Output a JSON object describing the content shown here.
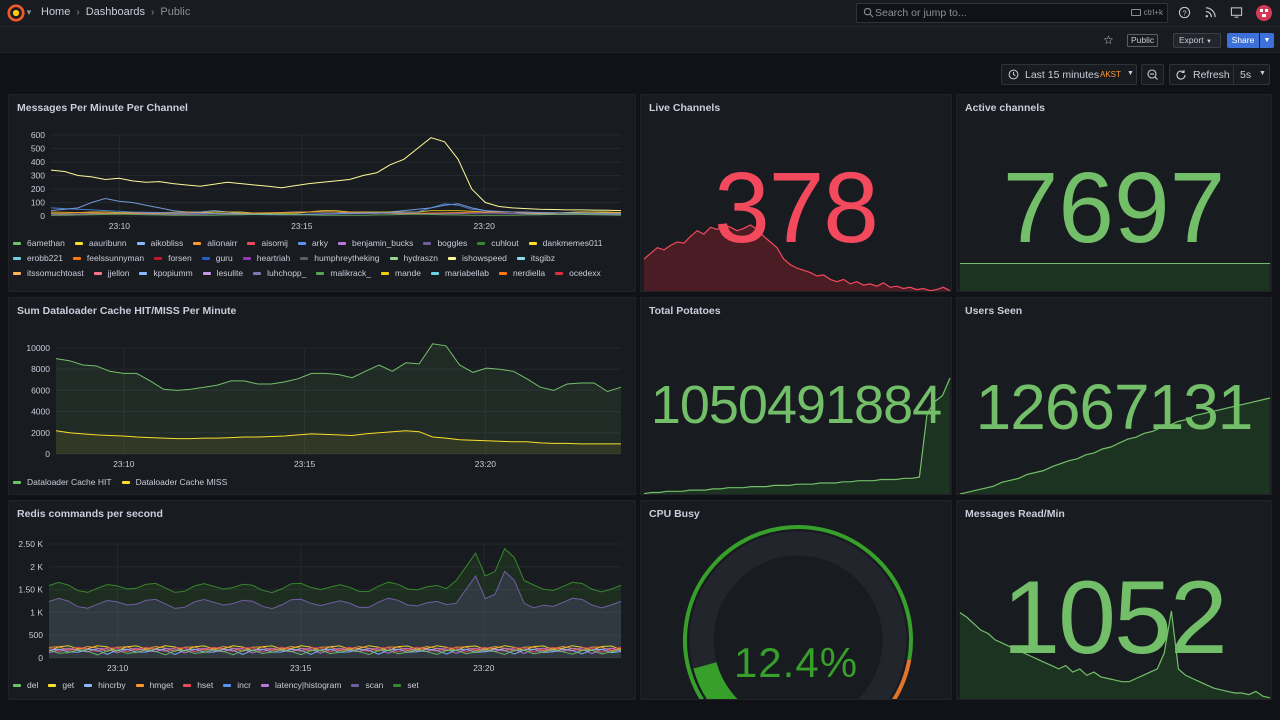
{
  "topbar": {
    "breadcrumb": [
      "Home",
      "Dashboards",
      "Public"
    ],
    "search_placeholder": "Search or jump to...",
    "search_shortcut": "ctrl+k"
  },
  "subbar": {
    "public_tag": "Public",
    "export_label": "Export",
    "share_label": "Share"
  },
  "controls": {
    "time_range": "Last 15 minutes",
    "timezone": "AKST",
    "refresh_label": "Refresh",
    "refresh_interval": "5s"
  },
  "colors": {
    "green": "#73bf69",
    "red": "#f2495c",
    "yellow": "#fade2a",
    "blue": "#5794f2",
    "orange": "#ff9830",
    "purple": "#b877d9",
    "gauge_green": "#37872d"
  },
  "panels": {
    "messages_per_minute": {
      "title": "Messages Per Minute Per Channel",
      "legend": [
        {
          "label": "6amethan",
          "color": "#73bf69"
        },
        {
          "label": "aauribunn",
          "color": "#fade2a"
        },
        {
          "label": "aikobliss",
          "color": "#8ab8ff"
        },
        {
          "label": "alionairr",
          "color": "#ff9830"
        },
        {
          "label": "aisomij",
          "color": "#f2495c"
        },
        {
          "label": "arky",
          "color": "#5794f2"
        },
        {
          "label": "benjamin_bucks",
          "color": "#b877d9"
        },
        {
          "label": "boggles",
          "color": "#705da0"
        },
        {
          "label": "cuhlout",
          "color": "#37872d"
        },
        {
          "label": "dankmemes011",
          "color": "#fade2a"
        },
        {
          "label": "erobb221",
          "color": "#6ed0e0"
        },
        {
          "label": "feelssunnyman",
          "color": "#ff780a"
        },
        {
          "label": "forsen",
          "color": "#c4162a"
        },
        {
          "label": "guru",
          "color": "#1f60c4"
        },
        {
          "label": "heartriah",
          "color": "#8f3bb8"
        },
        {
          "label": "humphreytheking",
          "color": "#5a5a6e"
        },
        {
          "label": "hydraszn",
          "color": "#96d98d"
        },
        {
          "label": "ishowspeed",
          "color": "#fff899"
        },
        {
          "label": "itsgibz",
          "color": "#8ae0e8"
        },
        {
          "label": "itssomuchtoast",
          "color": "#ffb357"
        },
        {
          "label": "jjellon",
          "color": "#ff7383"
        },
        {
          "label": "kpopiumm",
          "color": "#8ab8ff"
        },
        {
          "label": "lesulite",
          "color": "#ca95e5"
        },
        {
          "label": "luhchopp_",
          "color": "#7b7bab"
        },
        {
          "label": "malikrack_",
          "color": "#56a64b"
        },
        {
          "label": "mande",
          "color": "#f2cc0c"
        },
        {
          "label": "mariabellab",
          "color": "#6ed0e0"
        },
        {
          "label": "nerdiella",
          "color": "#ff780a"
        },
        {
          "label": "ocedexx",
          "color": "#e02f44"
        }
      ]
    },
    "live_channels": {
      "title": "Live Channels",
      "value": "378"
    },
    "active_channels": {
      "title": "Active channels",
      "value": "7697"
    },
    "dataloader": {
      "title": "Sum Dataloader Cache HIT/MISS Per Minute",
      "legend": [
        {
          "label": "Dataloader Cache HIT",
          "color": "#73bf69"
        },
        {
          "label": "Dataloader Cache MISS",
          "color": "#fade2a"
        }
      ]
    },
    "total_potatoes": {
      "title": "Total Potatoes",
      "value": "1050491884"
    },
    "users_seen": {
      "title": "Users Seen",
      "value": "12667131"
    },
    "redis": {
      "title": "Redis commands per second",
      "legend": [
        {
          "label": "del",
          "color": "#73bf69"
        },
        {
          "label": "get",
          "color": "#fade2a"
        },
        {
          "label": "hincrby",
          "color": "#8ab8ff"
        },
        {
          "label": "hmget",
          "color": "#ff9830"
        },
        {
          "label": "hset",
          "color": "#f2495c"
        },
        {
          "label": "incr",
          "color": "#5794f2"
        },
        {
          "label": "latency|histogram",
          "color": "#b877d9"
        },
        {
          "label": "scan",
          "color": "#705da0"
        },
        {
          "label": "set",
          "color": "#37872d"
        }
      ]
    },
    "cpu_busy": {
      "title": "CPU Busy",
      "value": "12.4%",
      "fraction": 0.124
    },
    "messages_read": {
      "title": "Messages Read/Min",
      "value": "1052"
    }
  },
  "chart_data": [
    {
      "type": "line",
      "title": "Messages Per Minute Per Channel",
      "x_ticks": [
        "23:10",
        "23:15",
        "23:20"
      ],
      "y_ticks": [
        "0",
        "100",
        "200",
        "300",
        "400",
        "500",
        "600"
      ],
      "ylim": [
        0,
        600
      ]
    },
    {
      "type": "area",
      "title": "Sum Dataloader Cache HIT/MISS Per Minute",
      "x_ticks": [
        "23:10",
        "23:15",
        "23:20"
      ],
      "y_ticks": [
        "0",
        "2000",
        "4000",
        "6000",
        "8000",
        "10000"
      ],
      "ylim": [
        0,
        10000
      ],
      "series": [
        {
          "name": "Dataloader Cache HIT",
          "values": [
            9000,
            8800,
            8400,
            8300,
            7800,
            7600,
            7600,
            6900,
            6100,
            6000,
            6100,
            6300,
            6500,
            6900,
            6900,
            6600,
            6600,
            6800,
            7100,
            7600,
            7600,
            7500,
            7200,
            7800,
            8400,
            7800,
            8600,
            8500,
            10400,
            10200,
            8400,
            7700,
            8100,
            8000,
            7800,
            7100,
            6300,
            6000,
            6600,
            6700,
            6700,
            5900,
            6300
          ]
        },
        {
          "name": "Dataloader Cache MISS",
          "values": [
            2200,
            2000,
            1900,
            1800,
            1750,
            1700,
            1600,
            1550,
            1500,
            1450,
            1450,
            1500,
            1500,
            1550,
            1600,
            1600,
            1650,
            1700,
            1800,
            1900,
            1850,
            1800,
            1750,
            1900,
            2000,
            2100,
            2200,
            2100,
            1600,
            1500,
            1350,
            1300,
            1250,
            1200,
            1150,
            1150,
            1050,
            1000,
            1000,
            950,
            950,
            950,
            950
          ]
        }
      ]
    },
    {
      "type": "area",
      "title": "Redis commands per second",
      "x_ticks": [
        "23:10",
        "23:15",
        "23:20"
      ],
      "y_ticks": [
        "0",
        "500",
        "1 K",
        "1.50 K",
        "2 K",
        "2.50 K"
      ],
      "ylim": [
        0,
        2500
      ]
    }
  ]
}
